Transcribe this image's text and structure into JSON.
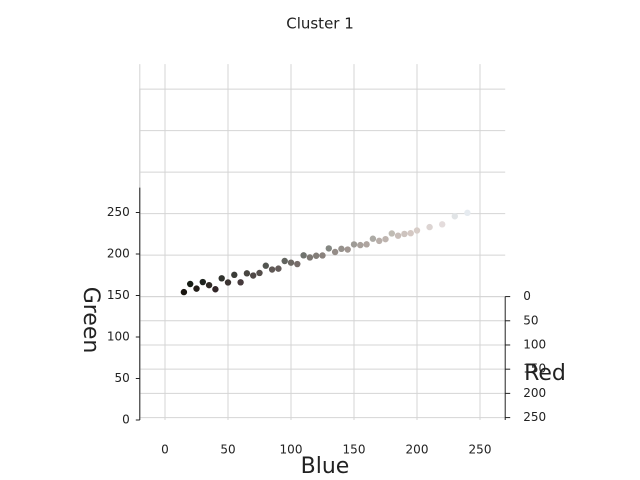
{
  "chart_data": {
    "type": "scatter3d",
    "title": "Cluster 1",
    "xlabel": "Blue",
    "ylabel": "Green",
    "zlabel": "Red",
    "xlim": [
      -20,
      270
    ],
    "ylim": [
      0,
      280
    ],
    "zlim": [
      0,
      255
    ],
    "xticks": [
      0,
      50,
      100,
      150,
      200,
      250
    ],
    "yticks": [
      0,
      50,
      100,
      150,
      200,
      250
    ],
    "zticks": [
      0,
      50,
      100,
      150,
      200,
      250
    ],
    "grid": true,
    "x": [
      15,
      20,
      25,
      30,
      35,
      40,
      45,
      50,
      55,
      60,
      65,
      70,
      75,
      80,
      85,
      90,
      95,
      100,
      105,
      110,
      115,
      120,
      125,
      130,
      135,
      140,
      145,
      150,
      155,
      160,
      165,
      170,
      175,
      180,
      185,
      190,
      195,
      200,
      210,
      220,
      230,
      240
    ],
    "y": [
      20,
      28,
      30,
      35,
      40,
      38,
      50,
      52,
      60,
      58,
      70,
      72,
      78,
      85,
      88,
      92,
      100,
      105,
      108,
      115,
      120,
      125,
      130,
      135,
      140,
      145,
      150,
      155,
      160,
      165,
      170,
      175,
      180,
      188,
      190,
      195,
      200,
      205,
      212,
      220,
      228,
      235
    ],
    "z": [
      25,
      22,
      35,
      30,
      45,
      50,
      48,
      60,
      58,
      70,
      72,
      80,
      85,
      82,
      95,
      100,
      98,
      110,
      118,
      112,
      125,
      130,
      138,
      132,
      148,
      150,
      160,
      158,
      168,
      175,
      172,
      185,
      190,
      192,
      200,
      205,
      212,
      215,
      220,
      228,
      225,
      230
    ]
  }
}
